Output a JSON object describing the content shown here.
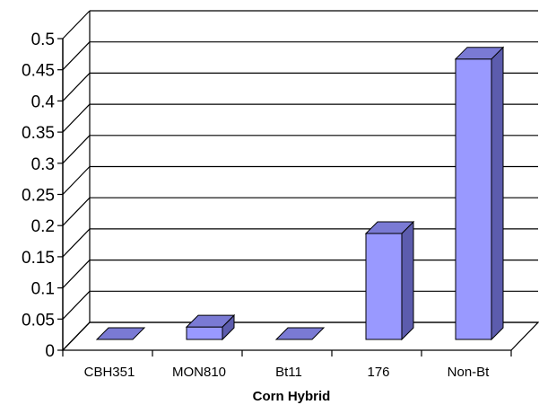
{
  "chart_data": {
    "type": "bar",
    "title": "",
    "xlabel": "Corn Hybrid",
    "ylabel": "",
    "categories": [
      "CBH351",
      "MON810",
      "Bt11",
      "176",
      "Non-Bt"
    ],
    "values": [
      0.0,
      0.02,
      0.0,
      0.17,
      0.45
    ],
    "ylim": [
      0,
      0.5
    ],
    "yticks": [
      "0",
      "0.05",
      "0.1",
      "0.15",
      "0.2",
      "0.25",
      "0.3",
      "0.35",
      "0.4",
      "0.45",
      "0.5"
    ],
    "grid": true,
    "three_d": true,
    "colors": {
      "bar_front": "#9999ff",
      "bar_top": "#7a7ad4",
      "bar_side": "#5c5cad",
      "grid": "#000000",
      "background": "#ffffff"
    }
  }
}
